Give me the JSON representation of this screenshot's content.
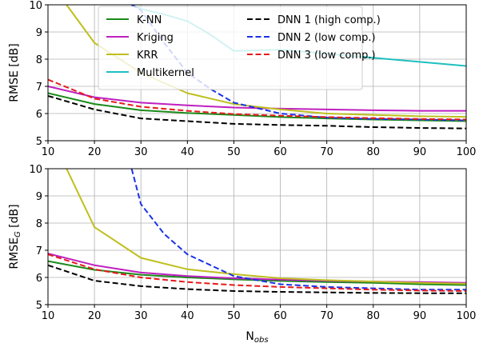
{
  "colors": {
    "knn": "#1a8a1a",
    "kriging": "#bf1fbf",
    "krr": "#bfbf1f",
    "multikernel": "#1fbfbf",
    "dnn1": "#000000",
    "dnn2": "#1a33e6",
    "dnn3": "#e61a1a",
    "grid": "#b0b0b0"
  },
  "legend_location": "top",
  "chart_data": [
    {
      "type": "line",
      "xlabel": "",
      "ylabel": "RMSE [dB]",
      "xlim": [
        10,
        100
      ],
      "ylim": [
        5,
        10
      ],
      "xticks": [
        "10",
        "20",
        "30",
        "40",
        "50",
        "60",
        "70",
        "80",
        "90",
        "100"
      ],
      "yticks": [
        "5",
        "6",
        "7",
        "8",
        "9",
        "10"
      ],
      "grid": true,
      "legend": true,
      "series": [
        {
          "name": "K-NN",
          "color_key": "knn",
          "dash": "solid",
          "x": [
            10,
            20,
            30,
            40,
            50,
            60,
            70,
            80,
            90,
            100
          ],
          "y": [
            6.75,
            6.35,
            6.12,
            6.02,
            5.95,
            5.87,
            5.82,
            5.78,
            5.75,
            5.72
          ]
        },
        {
          "name": "Kriging",
          "color_key": "kriging",
          "dash": "solid",
          "x": [
            10,
            20,
            30,
            40,
            50,
            60,
            70,
            80,
            90,
            100
          ],
          "y": [
            7.0,
            6.6,
            6.4,
            6.3,
            6.22,
            6.18,
            6.15,
            6.12,
            6.1,
            6.1
          ]
        },
        {
          "name": "KRR",
          "color_key": "krr",
          "dash": "solid",
          "x": [
            14,
            20,
            30,
            40,
            50,
            60,
            70,
            80,
            90,
            100
          ],
          "y": [
            10.0,
            8.6,
            7.5,
            6.75,
            6.35,
            6.15,
            6.0,
            5.95,
            5.9,
            5.88
          ]
        },
        {
          "name": "Multikernel",
          "color_key": "multikernel",
          "dash": "solid",
          "x": [
            28,
            30,
            35,
            40,
            45,
            50,
            60,
            70,
            80,
            90,
            100
          ],
          "y": [
            10.0,
            9.85,
            9.65,
            9.4,
            8.9,
            8.3,
            8.35,
            8.2,
            8.05,
            7.9,
            7.75
          ]
        },
        {
          "name": "DNN 1 (high comp.)",
          "color_key": "dnn1",
          "dash": "dashed",
          "x": [
            10,
            20,
            30,
            40,
            50,
            60,
            70,
            80,
            90,
            100
          ],
          "y": [
            6.65,
            6.15,
            5.82,
            5.72,
            5.62,
            5.58,
            5.55,
            5.5,
            5.47,
            5.45
          ]
        },
        {
          "name": "DNN 2 (low comp.)",
          "color_key": "dnn2",
          "dash": "dashed",
          "x": [
            28,
            30,
            35,
            40,
            45,
            50,
            60,
            70,
            80,
            90,
            100
          ],
          "y": [
            10.0,
            9.8,
            8.6,
            7.5,
            6.9,
            6.4,
            6.0,
            5.85,
            5.8,
            5.78,
            5.75
          ]
        },
        {
          "name": "DNN 3 (low comp.)",
          "color_key": "dnn3",
          "dash": "dashed",
          "x": [
            10,
            20,
            30,
            40,
            50,
            60,
            70,
            80,
            90,
            100
          ],
          "y": [
            7.25,
            6.55,
            6.25,
            6.1,
            5.98,
            5.92,
            5.87,
            5.83,
            5.8,
            5.78
          ]
        }
      ]
    },
    {
      "type": "line",
      "xlabel": "N",
      "xlabel_sub": "obs",
      "ylabel": "RMSE",
      "ylabel_sub": "G",
      "ylabel_suffix": " [dB]",
      "xlim": [
        10,
        100
      ],
      "ylim": [
        5,
        10
      ],
      "xticks": [
        "10",
        "20",
        "30",
        "40",
        "50",
        "60",
        "70",
        "80",
        "90",
        "100"
      ],
      "yticks": [
        "5",
        "6",
        "7",
        "8",
        "9",
        "10"
      ],
      "grid": true,
      "legend": false,
      "series": [
        {
          "name": "K-NN",
          "color_key": "knn",
          "dash": "solid",
          "x": [
            10,
            20,
            30,
            40,
            50,
            60,
            70,
            80,
            90,
            100
          ],
          "y": [
            6.6,
            6.28,
            6.1,
            6.0,
            5.93,
            5.87,
            5.83,
            5.8,
            5.75,
            5.72
          ]
        },
        {
          "name": "Kriging",
          "color_key": "kriging",
          "dash": "solid",
          "x": [
            10,
            20,
            30,
            40,
            50,
            60,
            70,
            80,
            90,
            100
          ],
          "y": [
            6.88,
            6.45,
            6.18,
            6.05,
            5.97,
            5.92,
            5.88,
            5.85,
            5.83,
            5.8
          ]
        },
        {
          "name": "KRR",
          "color_key": "krr",
          "dash": "solid",
          "x": [
            14,
            20,
            30,
            40,
            50,
            60,
            70,
            80,
            90,
            100
          ],
          "y": [
            10.0,
            7.85,
            6.72,
            6.3,
            6.12,
            5.97,
            5.9,
            5.85,
            5.8,
            5.77
          ]
        },
        {
          "name": "DNN 1 (high comp.)",
          "color_key": "dnn1",
          "dash": "dashed",
          "x": [
            10,
            20,
            30,
            40,
            50,
            60,
            70,
            80,
            90,
            100
          ],
          "y": [
            6.45,
            5.88,
            5.68,
            5.57,
            5.5,
            5.47,
            5.45,
            5.43,
            5.42,
            5.42
          ]
        },
        {
          "name": "DNN 2 (low comp.)",
          "color_key": "dnn2",
          "dash": "dashed",
          "x": [
            28,
            30,
            35,
            40,
            45,
            50,
            60,
            70,
            80,
            90,
            100
          ],
          "y": [
            10.0,
            8.7,
            7.6,
            6.85,
            6.45,
            6.05,
            5.75,
            5.65,
            5.6,
            5.55,
            5.55
          ]
        },
        {
          "name": "DNN 3 (low comp.)",
          "color_key": "dnn3",
          "dash": "dashed",
          "x": [
            10,
            20,
            30,
            40,
            50,
            60,
            70,
            80,
            90,
            100
          ],
          "y": [
            6.85,
            6.3,
            6.0,
            5.83,
            5.72,
            5.65,
            5.6,
            5.55,
            5.52,
            5.5
          ]
        }
      ]
    }
  ]
}
